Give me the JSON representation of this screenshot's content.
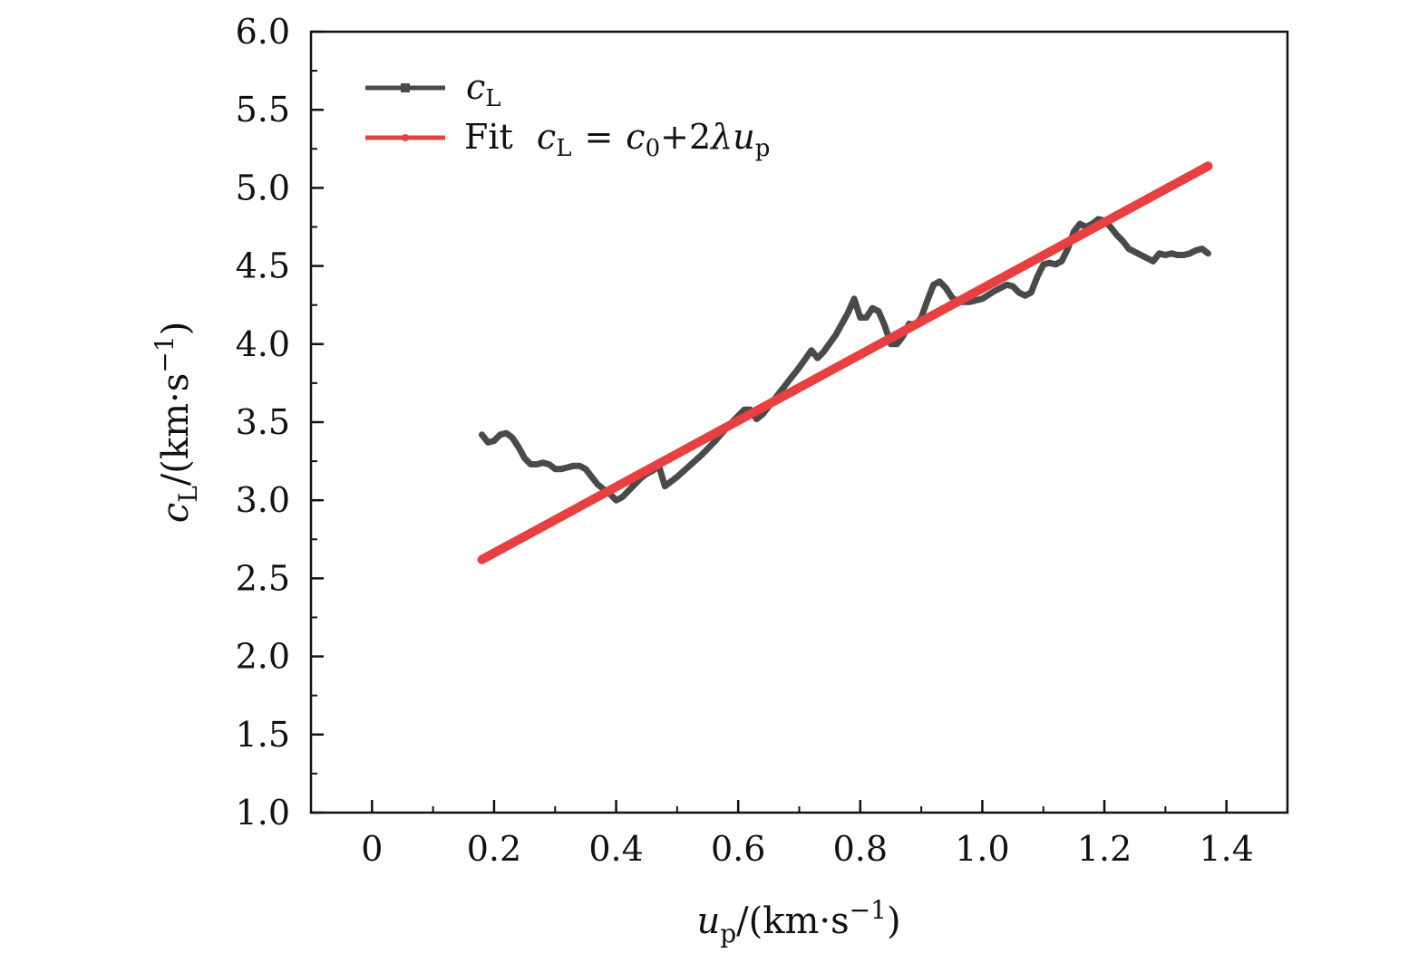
{
  "chart_data": {
    "type": "line",
    "title": "",
    "xlabel": {
      "var": "u",
      "sub": "p",
      "unit": "/(km·s",
      "exp": "−1",
      "close": ")"
    },
    "ylabel": {
      "var": "c",
      "sub": "L",
      "unit": "/(km·s",
      "exp": "−1",
      "close": ")"
    },
    "xlim": [
      -0.1,
      1.5
    ],
    "ylim": [
      1.0,
      6.0
    ],
    "xticks": [
      0,
      0.2,
      0.4,
      0.6,
      0.8,
      1.0,
      1.2,
      1.4
    ],
    "xtick_labels": [
      "0",
      "0.2",
      "0.4",
      "0.6",
      "0.8",
      "1.0",
      "1.2",
      "1.4"
    ],
    "yticks": [
      1.0,
      1.5,
      2.0,
      2.5,
      3.0,
      3.5,
      4.0,
      4.5,
      5.0,
      5.5,
      6.0
    ],
    "ytick_labels": [
      "1.0",
      "1.5",
      "2.0",
      "2.5",
      "3.0",
      "3.5",
      "4.0",
      "4.5",
      "5.0",
      "5.5",
      "6.0"
    ],
    "legend_position": "top-left",
    "series": [
      {
        "name": "cL",
        "legend": {
          "var": "c",
          "sub": "L"
        },
        "color": "#4a4a4a",
        "x": [
          0.18,
          0.19,
          0.2,
          0.21,
          0.22,
          0.23,
          0.24,
          0.25,
          0.26,
          0.27,
          0.28,
          0.29,
          0.3,
          0.31,
          0.32,
          0.33,
          0.34,
          0.35,
          0.36,
          0.37,
          0.38,
          0.39,
          0.4,
          0.41,
          0.42,
          0.43,
          0.44,
          0.45,
          0.46,
          0.47,
          0.48,
          0.5,
          0.52,
          0.54,
          0.56,
          0.58,
          0.6,
          0.61,
          0.62,
          0.63,
          0.64,
          0.66,
          0.68,
          0.7,
          0.72,
          0.73,
          0.74,
          0.76,
          0.78,
          0.79,
          0.8,
          0.81,
          0.82,
          0.83,
          0.84,
          0.85,
          0.86,
          0.87,
          0.88,
          0.89,
          0.9,
          0.91,
          0.92,
          0.93,
          0.94,
          0.95,
          0.96,
          0.97,
          0.98,
          0.99,
          1.0,
          1.02,
          1.04,
          1.05,
          1.06,
          1.07,
          1.08,
          1.09,
          1.1,
          1.11,
          1.12,
          1.13,
          1.14,
          1.15,
          1.16,
          1.17,
          1.18,
          1.19,
          1.2,
          1.21,
          1.22,
          1.23,
          1.24,
          1.25,
          1.26,
          1.27,
          1.28,
          1.29,
          1.3,
          1.31,
          1.32,
          1.33,
          1.34,
          1.35,
          1.36,
          1.37
        ],
        "y": [
          3.42,
          3.37,
          3.38,
          3.42,
          3.43,
          3.4,
          3.34,
          3.27,
          3.23,
          3.23,
          3.24,
          3.23,
          3.2,
          3.2,
          3.21,
          3.22,
          3.22,
          3.2,
          3.15,
          3.1,
          3.07,
          3.04,
          3.0,
          3.02,
          3.06,
          3.1,
          3.14,
          3.17,
          3.19,
          3.22,
          3.09,
          3.15,
          3.22,
          3.29,
          3.37,
          3.46,
          3.54,
          3.58,
          3.58,
          3.52,
          3.55,
          3.65,
          3.75,
          3.85,
          3.96,
          3.91,
          3.95,
          4.06,
          4.2,
          4.29,
          4.17,
          4.17,
          4.23,
          4.21,
          4.12,
          4.0,
          4.0,
          4.05,
          4.13,
          4.12,
          4.17,
          4.28,
          4.38,
          4.4,
          4.36,
          4.3,
          4.27,
          4.27,
          4.27,
          4.28,
          4.29,
          4.34,
          4.38,
          4.37,
          4.33,
          4.31,
          4.33,
          4.43,
          4.51,
          4.52,
          4.51,
          4.53,
          4.61,
          4.72,
          4.77,
          4.75,
          4.77,
          4.8,
          4.79,
          4.75,
          4.7,
          4.66,
          4.61,
          4.59,
          4.57,
          4.55,
          4.53,
          4.58,
          4.57,
          4.58,
          4.57,
          4.57,
          4.58,
          4.6,
          4.61,
          4.58
        ]
      },
      {
        "name": "Fit cL = c0+2λup",
        "legend": {
          "prefix": "Fit",
          "formula": "c_L = c_0 + 2λu_p"
        },
        "color": "#e84040",
        "x": [
          0.18,
          1.37
        ],
        "y": [
          2.62,
          5.14
        ]
      }
    ]
  },
  "legend_fit_prefix": "Fit",
  "legend_fit_parts": {
    "c": "c",
    "L": "L",
    "eq": "=",
    "c0": "c",
    "zero": "0",
    "plus": "+2",
    "lam": "λ",
    "u": "u",
    "p": "p"
  },
  "colors": {
    "axis": "#111111",
    "cl": "#4a4a4a",
    "fit": "#e84040"
  }
}
